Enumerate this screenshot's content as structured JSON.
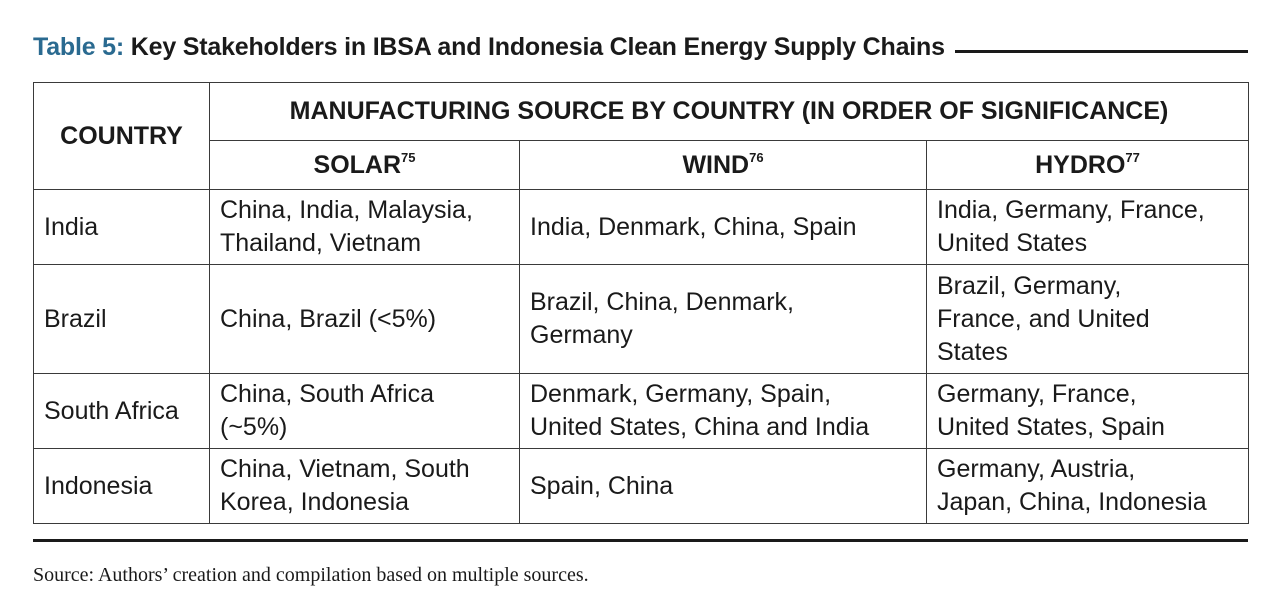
{
  "title": {
    "label": "Table 5:",
    "text": "Key Stakeholders in IBSA and Indonesia Clean Energy Supply Chains"
  },
  "table": {
    "country_header": "COUNTRY",
    "group_header": "MANUFACTURING SOURCE BY COUNTRY (IN ORDER OF SIGNIFICANCE)",
    "sub_headers": [
      {
        "label": "SOLAR",
        "ref": "75"
      },
      {
        "label": "WIND",
        "ref": "76"
      },
      {
        "label": "HYDRO",
        "ref": "77"
      }
    ],
    "rows": [
      {
        "country": "India",
        "solar": [
          "China, India, Malaysia,",
          "Thailand, Vietnam"
        ],
        "wind": [
          "India, Denmark, China, Spain"
        ],
        "hydro": [
          "India, Germany, France,",
          "United States"
        ]
      },
      {
        "country": "Brazil",
        "solar": [
          "China, Brazil (<5%)"
        ],
        "wind": [
          "Brazil, China, Denmark,",
          "Germany"
        ],
        "hydro": [
          "Brazil, Germany,",
          "France, and United",
          "States"
        ]
      },
      {
        "country": "South Africa",
        "solar": [
          "China, South Africa",
          "(~5%)"
        ],
        "wind": [
          "Denmark, Germany, Spain,",
          "United States, China and India"
        ],
        "hydro": [
          "Germany, France,",
          "United States, Spain"
        ]
      },
      {
        "country": "Indonesia",
        "solar": [
          "China, Vietnam, South",
          "Korea, Indonesia"
        ],
        "wind": [
          "Spain, China"
        ],
        "hydro": [
          "Germany, Austria,",
          "Japan, China, Indonesia"
        ]
      }
    ]
  },
  "source": "Source: Authors’ creation and compilation based on multiple sources.",
  "colors": {
    "title_label": "#2a6a90",
    "text": "#1a1a1a",
    "border": "#3a3a3a"
  }
}
